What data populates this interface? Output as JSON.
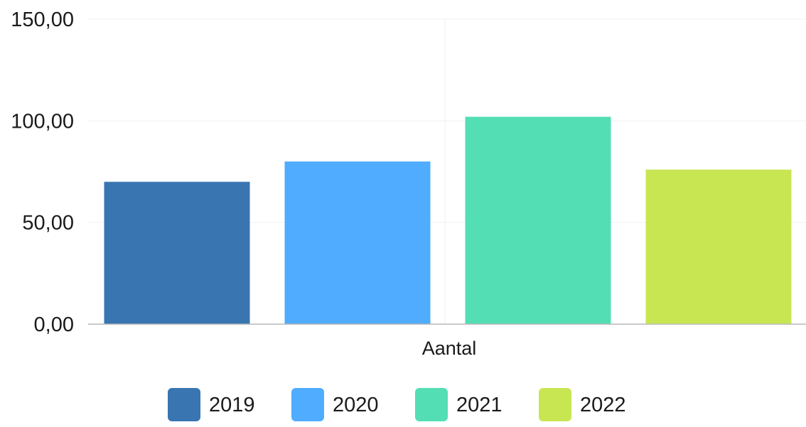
{
  "chart_data": {
    "type": "bar",
    "categories": [
      "Aantal"
    ],
    "xlabel": "Aantal",
    "ylim": [
      0,
      150
    ],
    "y_ticks": [
      "0,00",
      "50,00",
      "100,00",
      "150,00"
    ],
    "y_tick_values": [
      0,
      50,
      100,
      150
    ],
    "grid": true,
    "legend_position": "bottom",
    "series": [
      {
        "name": "2019",
        "values": [
          70
        ],
        "color": "#3875b1"
      },
      {
        "name": "2020",
        "values": [
          80
        ],
        "color": "#4facff"
      },
      {
        "name": "2021",
        "values": [
          102
        ],
        "color": "#53deb3"
      },
      {
        "name": "2022",
        "values": [
          76
        ],
        "color": "#c8e652"
      }
    ]
  }
}
